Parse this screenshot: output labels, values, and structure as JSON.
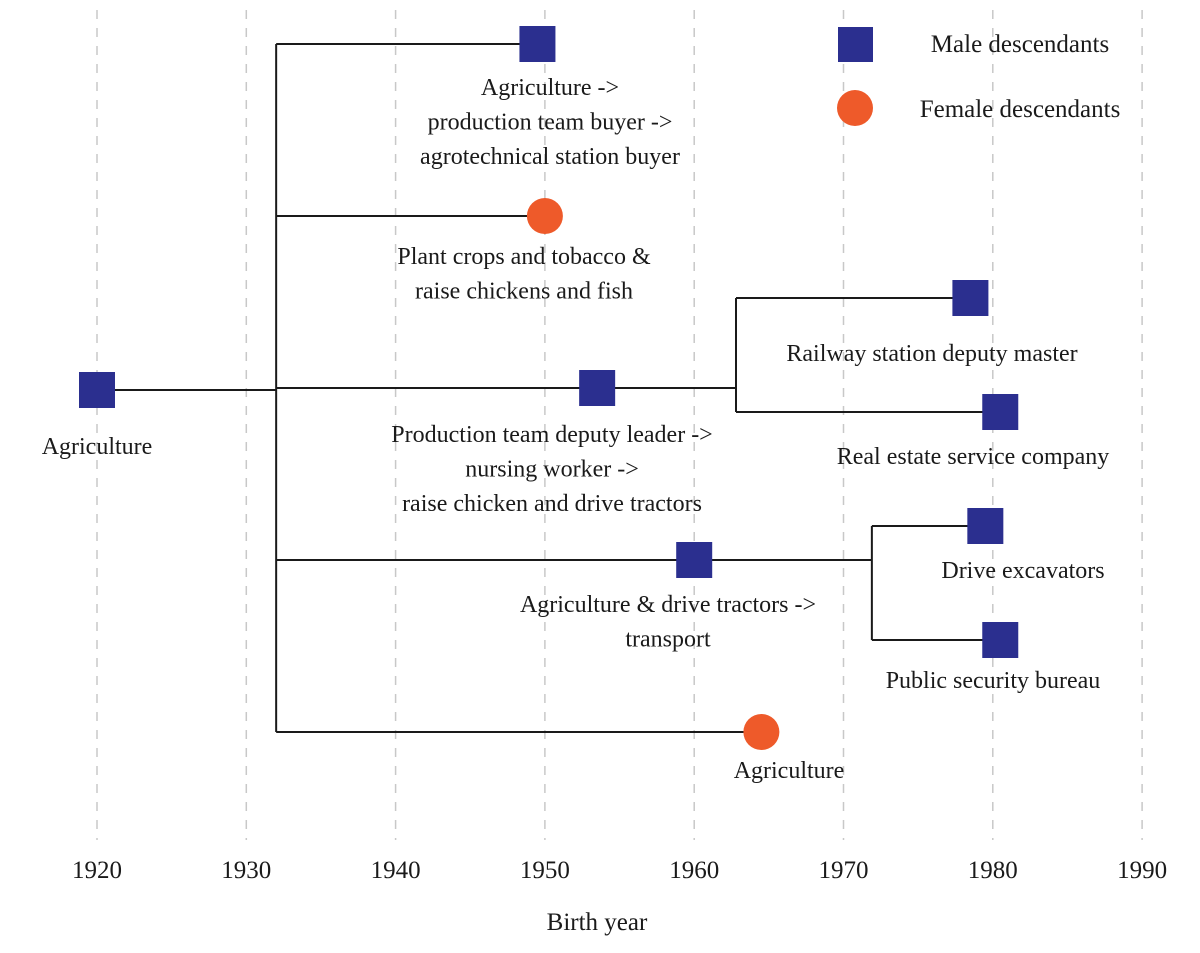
{
  "colors": {
    "male": "#2b2f8f",
    "female": "#ee5a2a",
    "line": "#1a1a1a",
    "grid": "#c8c8c8"
  },
  "axis": {
    "title": "Birth year",
    "ticks": [
      "1920",
      "1930",
      "1940",
      "1950",
      "1960",
      "1970",
      "1980",
      "1990"
    ]
  },
  "legend": {
    "male_label": "Male descendants",
    "female_label": "Female descendants"
  },
  "chart_data": {
    "type": "genealogy-timeline",
    "x_axis": {
      "label": "Birth year",
      "range": [
        1920,
        1990
      ]
    },
    "nodes": [
      {
        "id": "root",
        "sex": "male",
        "birth_year": 1920,
        "label": [
          "Agriculture"
        ]
      },
      {
        "id": "c1",
        "parent": "root",
        "sex": "male",
        "birth_year": 1949.5,
        "label": [
          "Agriculture ->",
          "production team buyer ->",
          "agrotechnical station buyer"
        ]
      },
      {
        "id": "c2",
        "parent": "root",
        "sex": "female",
        "birth_year": 1950,
        "label": [
          "Plant crops and tobacco &",
          "raise chickens and fish"
        ]
      },
      {
        "id": "c3",
        "parent": "root",
        "sex": "male",
        "birth_year": 1953.5,
        "label": [
          "Production team deputy leader ->",
          "nursing worker ->",
          "raise chicken and drive tractors"
        ]
      },
      {
        "id": "g1",
        "parent": "c3",
        "sex": "male",
        "birth_year": 1978.5,
        "label": [
          "Railway station deputy master"
        ]
      },
      {
        "id": "g2",
        "parent": "c3",
        "sex": "male",
        "birth_year": 1980.5,
        "label": [
          "Real estate service company"
        ]
      },
      {
        "id": "c4",
        "parent": "root",
        "sex": "male",
        "birth_year": 1960,
        "label": [
          "Agriculture & drive tractors ->",
          "transport"
        ]
      },
      {
        "id": "g3",
        "parent": "c4",
        "sex": "male",
        "birth_year": 1979.5,
        "label": [
          "Drive excavators"
        ]
      },
      {
        "id": "g4",
        "parent": "c4",
        "sex": "male",
        "birth_year": 1980.5,
        "label": [
          "Public security bureau"
        ]
      },
      {
        "id": "c5",
        "parent": "root",
        "sex": "female",
        "birth_year": 1964.5,
        "label": [
          "Agriculture"
        ]
      }
    ]
  }
}
